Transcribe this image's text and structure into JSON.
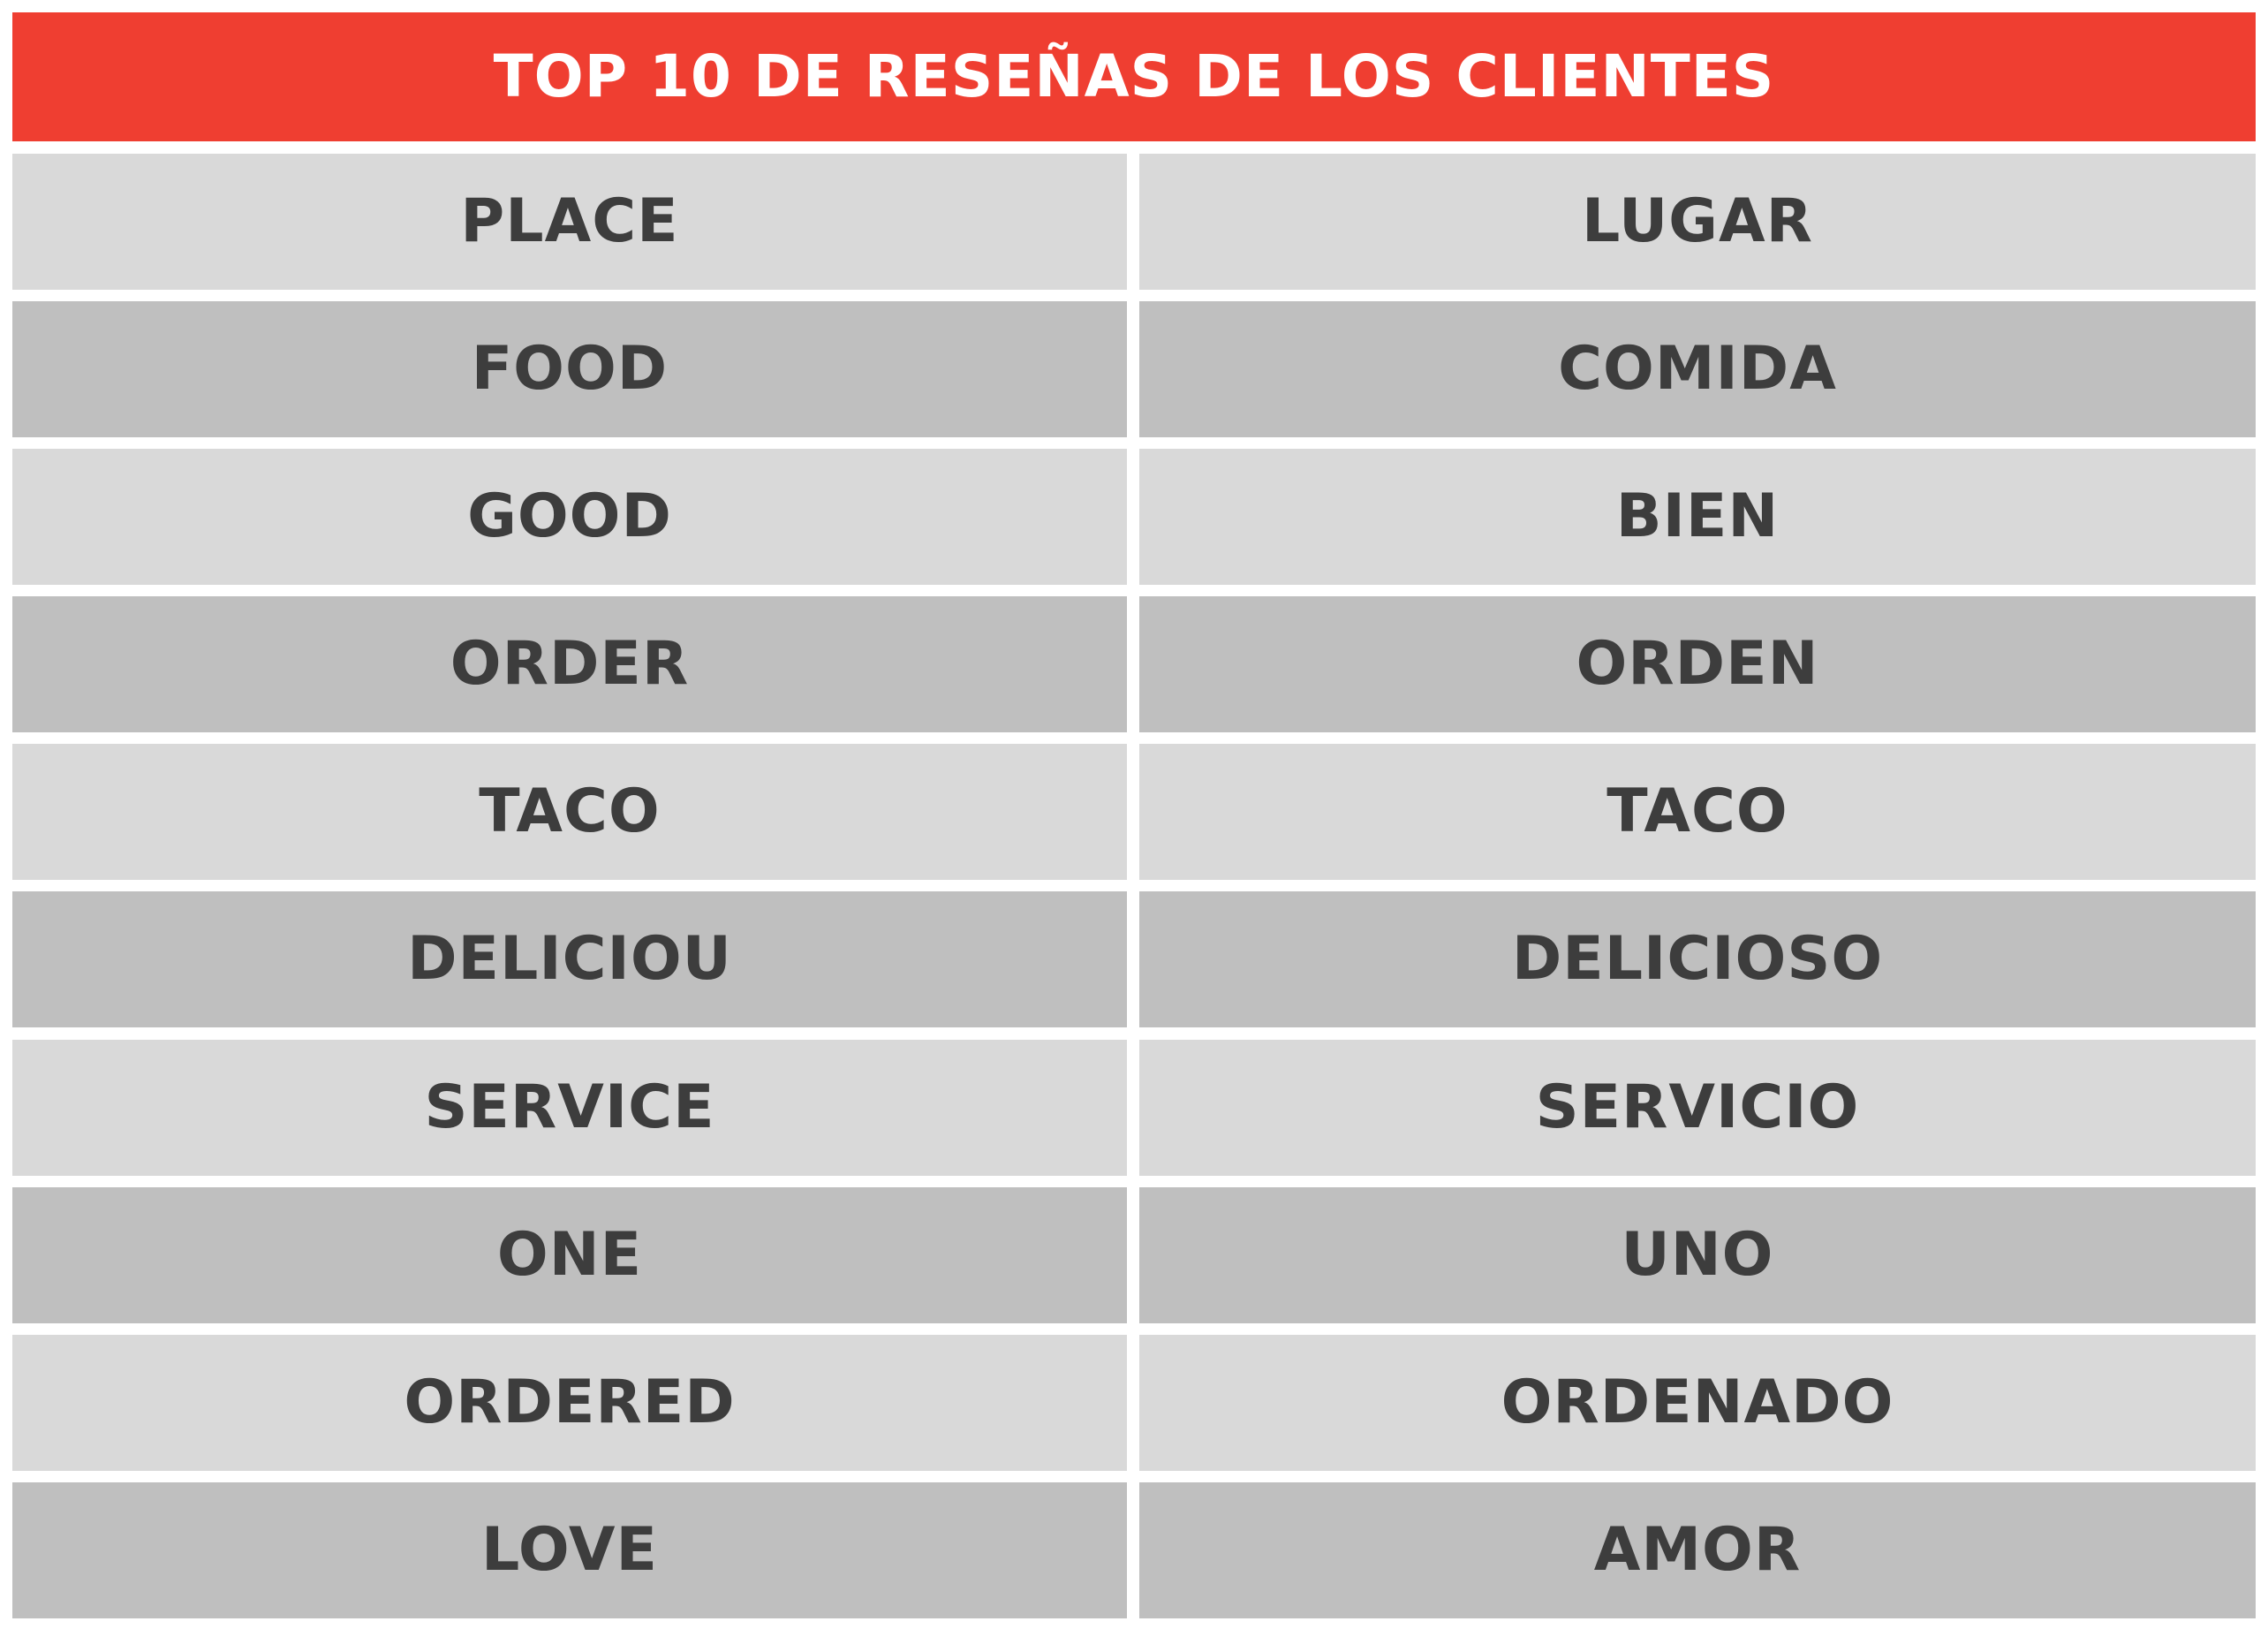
{
  "title": "TOP 10 DE RESEÑAS DE LOS CLIENTES",
  "colors": {
    "header_bg": "#ef3e31",
    "header_text": "#ffffff",
    "row_light": "#d9d9d9",
    "row_dark": "#bfbfbf",
    "cell_text": "#3d3d3d"
  },
  "rows": [
    {
      "english": "PLACE",
      "spanish": "LUGAR"
    },
    {
      "english": "FOOD",
      "spanish": "COMIDA"
    },
    {
      "english": "GOOD",
      "spanish": "BIEN"
    },
    {
      "english": "ORDER",
      "spanish": "ORDEN"
    },
    {
      "english": "TACO",
      "spanish": "TACO"
    },
    {
      "english": "DELICIOU",
      "spanish": "DELICIOSO"
    },
    {
      "english": "SERVICE",
      "spanish": "SERVICIO"
    },
    {
      "english": "ONE",
      "spanish": "UNO"
    },
    {
      "english": "ORDERED",
      "spanish": "ORDENADO"
    },
    {
      "english": "LOVE",
      "spanish": "AMOR"
    }
  ]
}
